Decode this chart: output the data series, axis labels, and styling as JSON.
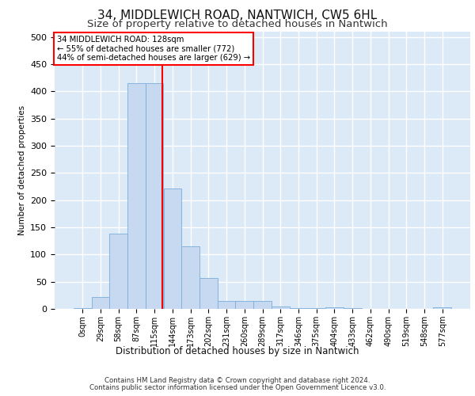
{
  "title": "34, MIDDLEWICH ROAD, NANTWICH, CW5 6HL",
  "subtitle": "Size of property relative to detached houses in Nantwich",
  "xlabel": "Distribution of detached houses by size in Nantwich",
  "ylabel": "Number of detached properties",
  "bar_labels": [
    "0sqm",
    "29sqm",
    "58sqm",
    "87sqm",
    "115sqm",
    "144sqm",
    "173sqm",
    "202sqm",
    "231sqm",
    "260sqm",
    "289sqm",
    "317sqm",
    "346sqm",
    "375sqm",
    "404sqm",
    "433sqm",
    "462sqm",
    "490sqm",
    "519sqm",
    "548sqm",
    "577sqm"
  ],
  "bar_values": [
    2,
    22,
    138,
    415,
    415,
    222,
    115,
    57,
    14,
    15,
    15,
    5,
    1,
    1,
    3,
    1,
    0,
    0,
    0,
    0,
    3
  ],
  "bar_color": "#c6d9f0",
  "bar_edge_color": "#7aadda",
  "background_color": "#dce9f7",
  "grid_color": "#ffffff",
  "annotation_text": "34 MIDDLEWICH ROAD: 128sqm\n← 55% of detached houses are smaller (772)\n44% of semi-detached houses are larger (629) →",
  "footer1": "Contains HM Land Registry data © Crown copyright and database right 2024.",
  "footer2": "Contains public sector information licensed under the Open Government Licence v3.0.",
  "ylim": [
    0,
    510
  ],
  "title_fontsize": 11,
  "subtitle_fontsize": 9.5
}
